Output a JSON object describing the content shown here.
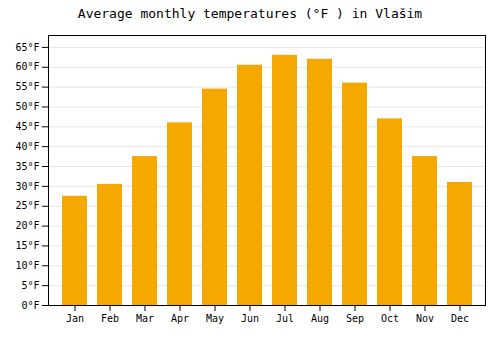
{
  "chart_data": {
    "type": "bar",
    "title": "Average monthly temperatures (°F ) in Vlašim",
    "categories": [
      "Jan",
      "Feb",
      "Mar",
      "Apr",
      "May",
      "Jun",
      "Jul",
      "Aug",
      "Sep",
      "Oct",
      "Nov",
      "Dec"
    ],
    "values": [
      27.5,
      30.5,
      37.5,
      46.0,
      54.5,
      60.5,
      63.0,
      62.0,
      56.0,
      47.0,
      37.5,
      31.0
    ],
    "color": "#F5A800",
    "ylim": [
      0,
      68
    ],
    "yticks": [
      {
        "value": 0,
        "label": "0°F"
      },
      {
        "value": 5,
        "label": "5°F"
      },
      {
        "value": 10,
        "label": "10°F"
      },
      {
        "value": 15,
        "label": "15°F"
      },
      {
        "value": 20,
        "label": "20°F"
      },
      {
        "value": 25,
        "label": "25°F"
      },
      {
        "value": 30,
        "label": "30°F"
      },
      {
        "value": 35,
        "label": "35°F"
      },
      {
        "value": 40,
        "label": "40°F"
      },
      {
        "value": 45,
        "label": "45°F"
      },
      {
        "value": 50,
        "label": "50°F"
      },
      {
        "value": 55,
        "label": "55°F"
      },
      {
        "value": 60,
        "label": "60°F"
      },
      {
        "value": 65,
        "label": "65°F"
      }
    ],
    "grid": true
  }
}
